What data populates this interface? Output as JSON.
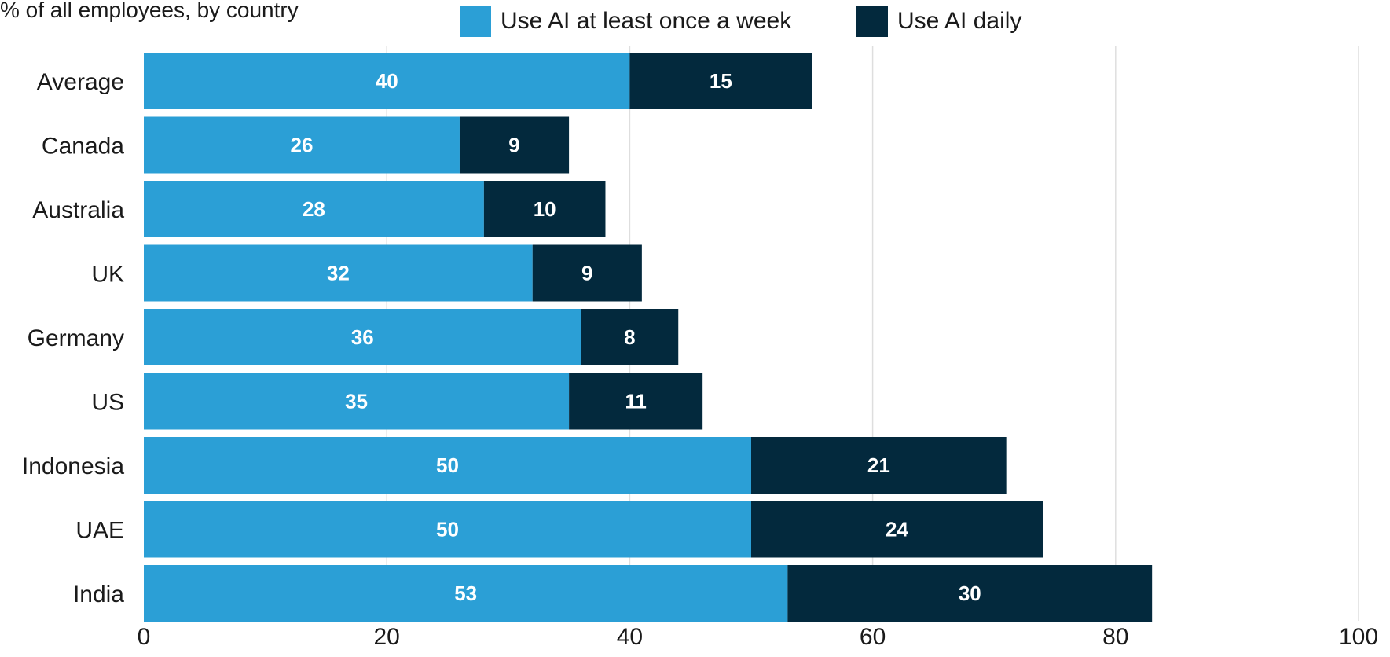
{
  "chart_data": {
    "type": "bar",
    "orientation": "horizontal",
    "stacked": true,
    "subtitle": "% of all employees, by country",
    "categories": [
      "Average",
      "Canada",
      "Australia",
      "UK",
      "Germany",
      "US",
      "Indonesia",
      "UAE",
      "India"
    ],
    "series": [
      {
        "name": "Use AI at least once a week",
        "color": "#2b9fd6",
        "values": [
          40,
          26,
          28,
          32,
          36,
          35,
          50,
          50,
          53
        ]
      },
      {
        "name": "Use AI daily",
        "color": "#03293d",
        "values": [
          15,
          9,
          10,
          9,
          8,
          11,
          21,
          24,
          30
        ]
      }
    ],
    "xlim": [
      0,
      100
    ],
    "xticks": [
      0,
      20,
      40,
      60,
      80,
      100
    ],
    "grid": "vertical",
    "legend": "top-center"
  }
}
